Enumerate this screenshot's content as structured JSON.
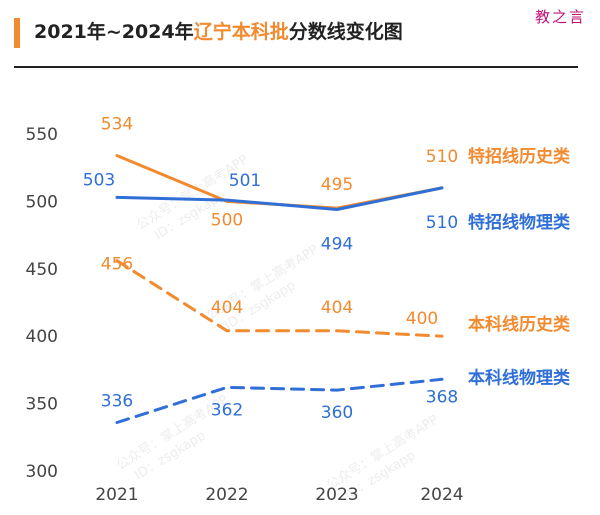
{
  "title": {
    "prefix": "2021年~2024年",
    "highlight": "辽宁本科批",
    "suffix": "分数线变化图"
  },
  "corner_label": "教之言",
  "watermark": {
    "line1": "公众号：掌上高考APP",
    "line2": "ID：zsgkapp"
  },
  "colors": {
    "history": "#f28a30",
    "physics": "#2f6fd6",
    "axis": "#444444"
  },
  "chart_data": {
    "type": "line",
    "x": [
      "2021",
      "2022",
      "2023",
      "2024"
    ],
    "ylim": [
      300,
      550
    ],
    "yticks": [
      300,
      350,
      400,
      450,
      500,
      550
    ],
    "series": [
      {
        "name": "特招线历史类",
        "values": [
          534,
          500,
          495,
          510
        ],
        "style": "solid",
        "color": "#f28a30"
      },
      {
        "name": "特招线物理类",
        "values": [
          503,
          501,
          494,
          510
        ],
        "style": "solid",
        "color": "#2f6fd6"
      },
      {
        "name": "本科线历史类",
        "values": [
          456,
          404,
          404,
          400
        ],
        "style": "dashed",
        "color": "#f28a30"
      },
      {
        "name": "本科线物理类",
        "values": [
          336,
          362,
          360,
          368
        ],
        "style": "dashed",
        "color": "#2f6fd6"
      }
    ]
  }
}
